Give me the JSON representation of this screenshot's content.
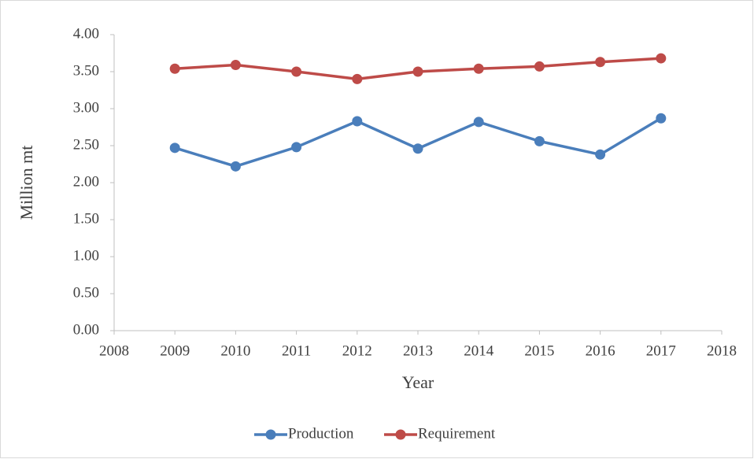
{
  "chart_data": {
    "type": "line",
    "x_label": "Year",
    "y_label": "Million mt",
    "x": [
      2009,
      2010,
      2011,
      2012,
      2013,
      2014,
      2015,
      2016,
      2017
    ],
    "series": [
      {
        "name": "Production",
        "color": "#4a7ebb",
        "values": [
          2.47,
          2.22,
          2.48,
          2.83,
          2.46,
          2.82,
          2.56,
          2.38,
          2.87
        ]
      },
      {
        "name": "Requirement",
        "color": "#be4b48",
        "values": [
          3.54,
          3.59,
          3.5,
          3.4,
          3.5,
          3.54,
          3.57,
          3.63,
          3.68
        ]
      }
    ],
    "xlim": [
      2008,
      2018
    ],
    "xticks": [
      2008,
      2009,
      2010,
      2011,
      2012,
      2013,
      2014,
      2015,
      2016,
      2017,
      2018
    ],
    "ylim": [
      0,
      4
    ],
    "yticks": [
      {
        "value": 0,
        "label": "0.00"
      },
      {
        "value": 0.5,
        "label": "0.50"
      },
      {
        "value": 1,
        "label": "1.00"
      },
      {
        "value": 1.5,
        "label": "1.50"
      },
      {
        "value": 2,
        "label": "2.00"
      },
      {
        "value": 2.5,
        "label": "2.50"
      },
      {
        "value": 3,
        "label": "3.00"
      },
      {
        "value": 3.5,
        "label": "3.50"
      },
      {
        "value": 4,
        "label": "4.00"
      }
    ],
    "legend": "bottom"
  }
}
